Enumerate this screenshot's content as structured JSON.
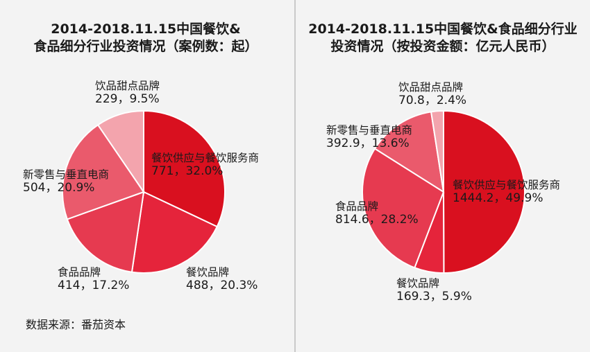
{
  "source_note": "数据来源：番茄资本",
  "chart_data": [
    {
      "type": "pie",
      "title": "2014-2018.11.15中国餐饮&\n食品细分行业投资情况（案例数：起）",
      "slices": [
        {
          "name": "餐饮供应与餐饮服务商",
          "value": 771,
          "percent": "32.0%",
          "label_value": "771，32.0%",
          "color": "#d9101f"
        },
        {
          "name": "餐饮品牌",
          "value": 488,
          "percent": "20.3%",
          "label_value": "488，20.3%",
          "color": "#e5243b"
        },
        {
          "name": "食品品牌",
          "value": 414,
          "percent": "17.2%",
          "label_value": "414，17.2%",
          "color": "#e63a50"
        },
        {
          "name": "新零售与垂直电商",
          "value": 504,
          "percent": "20.9%",
          "label_value": "504，20.9%",
          "color": "#ea5a6c"
        },
        {
          "name": "饮品甜点品牌",
          "value": 229,
          "percent": "9.5%",
          "label_value": "229，9.5%",
          "color": "#f3a4ad"
        }
      ]
    },
    {
      "type": "pie",
      "title": "2014-2018.11.15中国餐饮&食品细分行业\n投资情况（按投资金额：亿元人民币）",
      "slices": [
        {
          "name": "餐饮供应与餐饮服务商",
          "value": 1444.2,
          "percent": "49.9%",
          "label_value": "1444.2，49.9%",
          "color": "#d9101f"
        },
        {
          "name": "餐饮品牌",
          "value": 169.3,
          "percent": "5.9%",
          "label_value": "169.3，5.9%",
          "color": "#e5243b"
        },
        {
          "name": "食品品牌",
          "value": 814.6,
          "percent": "28.2%",
          "label_value": "814.6，28.2%",
          "color": "#e63a50"
        },
        {
          "name": "新零售与垂直电商",
          "value": 392.9,
          "percent": "13.6%",
          "label_value": "392.9，13.6%",
          "color": "#ea5a6c"
        },
        {
          "name": "饮品甜点品牌",
          "value": 70.8,
          "percent": "2.4%",
          "label_value": "70.8，2.4%",
          "color": "#f3a4ad"
        }
      ]
    }
  ]
}
